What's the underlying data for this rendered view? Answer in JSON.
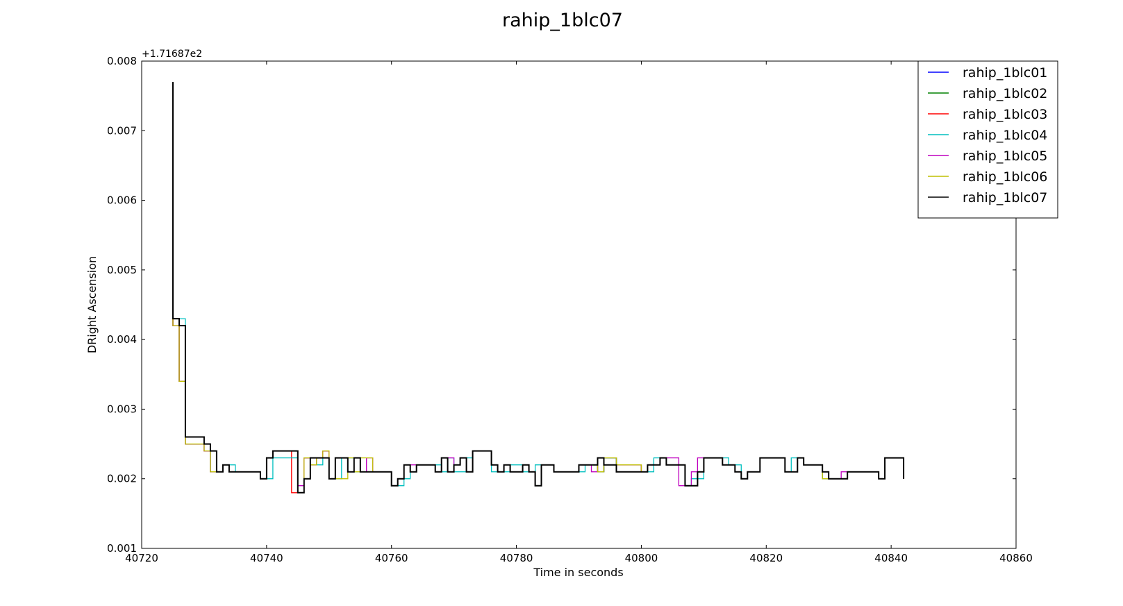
{
  "chart_data": {
    "type": "line",
    "title": "rahip_1blc07",
    "xlabel": "Time in seconds",
    "ylabel": "DRight Ascension",
    "offset_label": "+1.71687e2",
    "xlim": [
      40720,
      40860
    ],
    "ylim": [
      0.001,
      0.008
    ],
    "xticks": [
      40720,
      40740,
      40760,
      40780,
      40800,
      40820,
      40840,
      40860
    ],
    "xtick_labels": [
      "40720",
      "40740",
      "40760",
      "40780",
      "40800",
      "40820",
      "40840",
      "40860"
    ],
    "yticks": [
      0.001,
      0.002,
      0.003,
      0.004,
      0.005,
      0.006,
      0.007,
      0.008
    ],
    "ytick_labels": [
      "0.001",
      "0.002",
      "0.003",
      "0.004",
      "0.005",
      "0.006",
      "0.007",
      "0.008"
    ],
    "grid": false,
    "legend_position": "top-right",
    "step": true,
    "series": [
      {
        "name": "rahip_1blc01",
        "color": "#0000ff",
        "x": [
          40725,
          40725,
          40726,
          40727,
          40730,
          40731,
          40733,
          40734,
          40739,
          40740,
          40741,
          40745,
          40746,
          40747,
          40748,
          40749,
          40750,
          40751,
          40753,
          40754,
          40755,
          40757,
          40760,
          40761,
          40762,
          40763,
          40764,
          40767,
          40768,
          40769,
          40770,
          40771,
          40772,
          40773,
          40776,
          40777,
          40778,
          40779,
          40781,
          40782,
          40783,
          40784,
          40786,
          40790,
          40793,
          40794,
          40796,
          40800,
          40801,
          40803,
          40804,
          40807,
          40809,
          40810,
          40813,
          40815,
          40816,
          40817,
          40819,
          40823,
          40825,
          40826,
          40829,
          40830,
          40833,
          40838,
          40839,
          40842,
          40842
        ],
        "y": [
          0.0077,
          0.0042,
          0.0034,
          0.0025,
          0.0024,
          0.0021,
          0.0022,
          0.0021,
          0.002,
          0.0023,
          0.0024,
          0.0018,
          0.0023,
          0.0022,
          0.0023,
          0.0024,
          0.002,
          0.0023,
          0.0021,
          0.0023,
          0.0021,
          0.0021,
          0.0019,
          0.002,
          0.0022,
          0.0021,
          0.0022,
          0.0021,
          0.0023,
          0.0021,
          0.0022,
          0.0023,
          0.0021,
          0.0024,
          0.0022,
          0.0021,
          0.0022,
          0.0021,
          0.0022,
          0.0021,
          0.0019,
          0.0022,
          0.0021,
          0.0022,
          0.0021,
          0.0023,
          0.0022,
          0.0021,
          0.0022,
          0.0023,
          0.0022,
          0.0019,
          0.0021,
          0.0023,
          0.0022,
          0.0021,
          0.002,
          0.0021,
          0.0023,
          0.0021,
          0.0023,
          0.0022,
          0.002,
          0.002,
          0.0021,
          0.002,
          0.0023,
          0.0023,
          0.002
        ]
      },
      {
        "name": "rahip_1blc02",
        "color": "#008000",
        "x": [
          40725,
          40725,
          40726,
          40727,
          40730,
          40731,
          40733,
          40734,
          40739,
          40740,
          40741,
          40745,
          40746,
          40747,
          40748,
          40749,
          40750,
          40751,
          40753,
          40754,
          40755,
          40757,
          40760,
          40761,
          40762,
          40763,
          40764,
          40767,
          40768,
          40769,
          40770,
          40771,
          40772,
          40773,
          40776,
          40777,
          40778,
          40779,
          40781,
          40782,
          40783,
          40784,
          40786,
          40790,
          40793,
          40794,
          40796,
          40800,
          40801,
          40803,
          40804,
          40807,
          40809,
          40810,
          40813,
          40815,
          40816,
          40817,
          40819,
          40823,
          40825,
          40826,
          40829,
          40830,
          40833,
          40838,
          40839,
          40842,
          40842
        ],
        "y": [
          0.0077,
          0.0042,
          0.0034,
          0.0025,
          0.0024,
          0.0021,
          0.0022,
          0.0021,
          0.002,
          0.0023,
          0.0024,
          0.0018,
          0.0023,
          0.0022,
          0.0023,
          0.0024,
          0.002,
          0.0023,
          0.0021,
          0.0023,
          0.0021,
          0.0021,
          0.0019,
          0.002,
          0.0022,
          0.0021,
          0.0022,
          0.0021,
          0.0023,
          0.0021,
          0.0022,
          0.0023,
          0.0021,
          0.0024,
          0.0022,
          0.0021,
          0.0022,
          0.0021,
          0.0022,
          0.0021,
          0.0019,
          0.0022,
          0.0021,
          0.0022,
          0.0021,
          0.0023,
          0.0022,
          0.0021,
          0.0022,
          0.0023,
          0.0022,
          0.0019,
          0.0021,
          0.0023,
          0.0022,
          0.0021,
          0.002,
          0.0021,
          0.0023,
          0.0021,
          0.0023,
          0.0022,
          0.002,
          0.002,
          0.0021,
          0.002,
          0.0023,
          0.0023,
          0.002
        ]
      },
      {
        "name": "rahip_1blc03",
        "color": "#ff0000",
        "x": [
          40725,
          40725,
          40726,
          40727,
          40730,
          40731,
          40733,
          40734,
          40739,
          40740,
          40741,
          40744,
          40746,
          40747,
          40748,
          40749,
          40750,
          40751,
          40753,
          40754,
          40755,
          40757,
          40760,
          40761,
          40762,
          40763,
          40764,
          40767,
          40768,
          40769,
          40770,
          40771,
          40772,
          40773,
          40776,
          40777,
          40778,
          40779,
          40781,
          40782,
          40783,
          40784,
          40786,
          40790,
          40793,
          40794,
          40796,
          40800,
          40801,
          40803,
          40804,
          40807,
          40809,
          40810,
          40813,
          40815,
          40816,
          40817,
          40819,
          40823,
          40825,
          40826,
          40829,
          40830,
          40833,
          40838,
          40839,
          40842,
          40842
        ],
        "y": [
          0.0077,
          0.0042,
          0.0034,
          0.0025,
          0.0024,
          0.0021,
          0.0022,
          0.0021,
          0.002,
          0.0023,
          0.0024,
          0.0018,
          0.0023,
          0.0022,
          0.0023,
          0.0024,
          0.002,
          0.0023,
          0.0021,
          0.0023,
          0.0021,
          0.0021,
          0.0019,
          0.002,
          0.0022,
          0.0021,
          0.0022,
          0.0021,
          0.0023,
          0.0021,
          0.0022,
          0.0023,
          0.0021,
          0.0024,
          0.0022,
          0.0021,
          0.0022,
          0.0021,
          0.0022,
          0.0021,
          0.0019,
          0.0022,
          0.0021,
          0.0022,
          0.0021,
          0.0023,
          0.0022,
          0.0021,
          0.0022,
          0.0023,
          0.0022,
          0.0019,
          0.0021,
          0.0023,
          0.0022,
          0.0021,
          0.002,
          0.0021,
          0.0023,
          0.0021,
          0.0023,
          0.0022,
          0.002,
          0.002,
          0.0021,
          0.002,
          0.0023,
          0.0023,
          0.002
        ]
      },
      {
        "name": "rahip_1blc04",
        "color": "#00bfbf",
        "x": [
          40725,
          40725,
          40727,
          40730,
          40731,
          40733,
          40735,
          40739,
          40741,
          40745,
          40746,
          40747,
          40748,
          40749,
          40750,
          40752,
          40754,
          40757,
          40760,
          40762,
          40763,
          40764,
          40768,
          40769,
          40770,
          40772,
          40773,
          40776,
          40778,
          40779,
          40781,
          40783,
          40784,
          40786,
          40791,
          40793,
          40794,
          40796,
          40800,
          40802,
          40803,
          40804,
          40807,
          40808,
          40810,
          40814,
          40816,
          40817,
          40819,
          40823,
          40824,
          40826,
          40829,
          40830,
          40833,
          40838,
          40839,
          40842,
          40842
        ],
        "y": [
          0.0077,
          0.0043,
          0.0026,
          0.0025,
          0.0021,
          0.0022,
          0.0021,
          0.002,
          0.0023,
          0.0018,
          0.002,
          0.0023,
          0.0022,
          0.0023,
          0.002,
          0.0023,
          0.0021,
          0.0021,
          0.0019,
          0.002,
          0.0021,
          0.0022,
          0.0021,
          0.0023,
          0.0021,
          0.0023,
          0.0024,
          0.0021,
          0.0021,
          0.0022,
          0.0021,
          0.0022,
          0.0022,
          0.0021,
          0.0022,
          0.0021,
          0.0023,
          0.0021,
          0.0021,
          0.0023,
          0.0023,
          0.0022,
          0.0019,
          0.002,
          0.0023,
          0.0022,
          0.002,
          0.0021,
          0.0023,
          0.0021,
          0.0023,
          0.0022,
          0.002,
          0.002,
          0.0021,
          0.002,
          0.0023,
          0.0023,
          0.002
        ]
      },
      {
        "name": "rahip_1blc05",
        "color": "#bf00bf",
        "x": [
          40725,
          40725,
          40726,
          40727,
          40730,
          40731,
          40733,
          40734,
          40739,
          40740,
          40741,
          40745,
          40746,
          40747,
          40748,
          40749,
          40750,
          40751,
          40753,
          40754,
          40755,
          40756,
          40757,
          40760,
          40761,
          40762,
          40763,
          40767,
          40768,
          40770,
          40771,
          40772,
          40773,
          40776,
          40777,
          40778,
          40779,
          40781,
          40782,
          40783,
          40784,
          40786,
          40790,
          40792,
          40793,
          40794,
          40796,
          40800,
          40801,
          40803,
          40806,
          40807,
          40808,
          40809,
          40810,
          40813,
          40815,
          40816,
          40817,
          40819,
          40823,
          40825,
          40826,
          40829,
          40830,
          40832,
          40833,
          40838,
          40839,
          40842,
          40842
        ],
        "y": [
          0.0077,
          0.0042,
          0.0034,
          0.0026,
          0.0024,
          0.0021,
          0.0022,
          0.0021,
          0.002,
          0.0023,
          0.0024,
          0.0019,
          0.0023,
          0.0022,
          0.0023,
          0.0024,
          0.002,
          0.0023,
          0.0021,
          0.0023,
          0.0021,
          0.0023,
          0.0021,
          0.0019,
          0.002,
          0.0022,
          0.0022,
          0.0021,
          0.0023,
          0.0022,
          0.0023,
          0.0021,
          0.0024,
          0.0022,
          0.0021,
          0.0022,
          0.0021,
          0.0022,
          0.0021,
          0.0019,
          0.0022,
          0.0021,
          0.0022,
          0.0021,
          0.0023,
          0.0022,
          0.0022,
          0.0021,
          0.0022,
          0.0023,
          0.0019,
          0.0019,
          0.0021,
          0.0023,
          0.0023,
          0.0022,
          0.0021,
          0.002,
          0.0021,
          0.0023,
          0.0021,
          0.0023,
          0.0022,
          0.0021,
          0.002,
          0.0021,
          0.0021,
          0.002,
          0.0023,
          0.0023,
          0.002
        ]
      },
      {
        "name": "rahip_1blc06",
        "color": "#bfbf00",
        "x": [
          40725,
          40725,
          40726,
          40727,
          40730,
          40731,
          40733,
          40734,
          40739,
          40740,
          40741,
          40745,
          40746,
          40747,
          40748,
          40749,
          40750,
          40751,
          40753,
          40754,
          40755,
          40757,
          40760,
          40761,
          40762,
          40763,
          40764,
          40767,
          40768,
          40769,
          40770,
          40771,
          40772,
          40773,
          40776,
          40777,
          40778,
          40779,
          40781,
          40782,
          40783,
          40784,
          40786,
          40790,
          40793,
          40794,
          40795,
          40796,
          40800,
          40801,
          40803,
          40804,
          40807,
          40809,
          40810,
          40813,
          40815,
          40816,
          40817,
          40819,
          40823,
          40825,
          40826,
          40829,
          40830,
          40833,
          40838,
          40839,
          40842,
          40842
        ],
        "y": [
          0.0077,
          0.0042,
          0.0034,
          0.0025,
          0.0024,
          0.0021,
          0.0022,
          0.0021,
          0.002,
          0.0023,
          0.0024,
          0.0018,
          0.0023,
          0.0022,
          0.0023,
          0.0024,
          0.002,
          0.002,
          0.0023,
          0.0021,
          0.0023,
          0.0021,
          0.0019,
          0.002,
          0.0022,
          0.0021,
          0.0022,
          0.0021,
          0.0023,
          0.0021,
          0.0022,
          0.0023,
          0.0021,
          0.0024,
          0.0022,
          0.0021,
          0.0022,
          0.0021,
          0.0022,
          0.0021,
          0.0019,
          0.0022,
          0.0021,
          0.0022,
          0.0021,
          0.0023,
          0.0023,
          0.0022,
          0.0021,
          0.0022,
          0.0023,
          0.0022,
          0.0019,
          0.0021,
          0.0023,
          0.0022,
          0.0021,
          0.002,
          0.0021,
          0.0023,
          0.0021,
          0.0023,
          0.0022,
          0.002,
          0.002,
          0.0021,
          0.002,
          0.0023,
          0.0023,
          0.002
        ]
      },
      {
        "name": "rahip_1blc07",
        "color": "#000000",
        "x": [
          40725,
          40725,
          40726,
          40727,
          40730,
          40731,
          40732,
          40733,
          40734,
          40739,
          40740,
          40741,
          40745,
          40746,
          40747,
          40748,
          40749,
          40750,
          40751,
          40753,
          40754,
          40755,
          40757,
          40760,
          40761,
          40762,
          40763,
          40764,
          40767,
          40768,
          40769,
          40770,
          40771,
          40772,
          40773,
          40776,
          40777,
          40778,
          40779,
          40781,
          40782,
          40783,
          40784,
          40786,
          40790,
          40793,
          40794,
          40795,
          40796,
          40800,
          40801,
          40803,
          40804,
          40807,
          40809,
          40810,
          40813,
          40815,
          40816,
          40817,
          40819,
          40823,
          40825,
          40826,
          40829,
          40830,
          40833,
          40838,
          40839,
          40842,
          40842
        ],
        "y": [
          0.0077,
          0.0043,
          0.0042,
          0.0026,
          0.0025,
          0.0024,
          0.0021,
          0.0022,
          0.0021,
          0.002,
          0.0023,
          0.0024,
          0.0018,
          0.002,
          0.0023,
          0.0023,
          0.0023,
          0.002,
          0.0023,
          0.0021,
          0.0023,
          0.0021,
          0.0021,
          0.0019,
          0.002,
          0.0022,
          0.0021,
          0.0022,
          0.0021,
          0.0023,
          0.0021,
          0.0022,
          0.0023,
          0.0021,
          0.0024,
          0.0022,
          0.0021,
          0.0022,
          0.0021,
          0.0022,
          0.0021,
          0.0019,
          0.0022,
          0.0021,
          0.0022,
          0.0023,
          0.0022,
          0.0022,
          0.0021,
          0.0021,
          0.0022,
          0.0023,
          0.0022,
          0.0019,
          0.0021,
          0.0023,
          0.0022,
          0.0021,
          0.002,
          0.0021,
          0.0023,
          0.0021,
          0.0023,
          0.0022,
          0.0021,
          0.002,
          0.0021,
          0.002,
          0.0023,
          0.0023,
          0.002
        ]
      }
    ]
  }
}
